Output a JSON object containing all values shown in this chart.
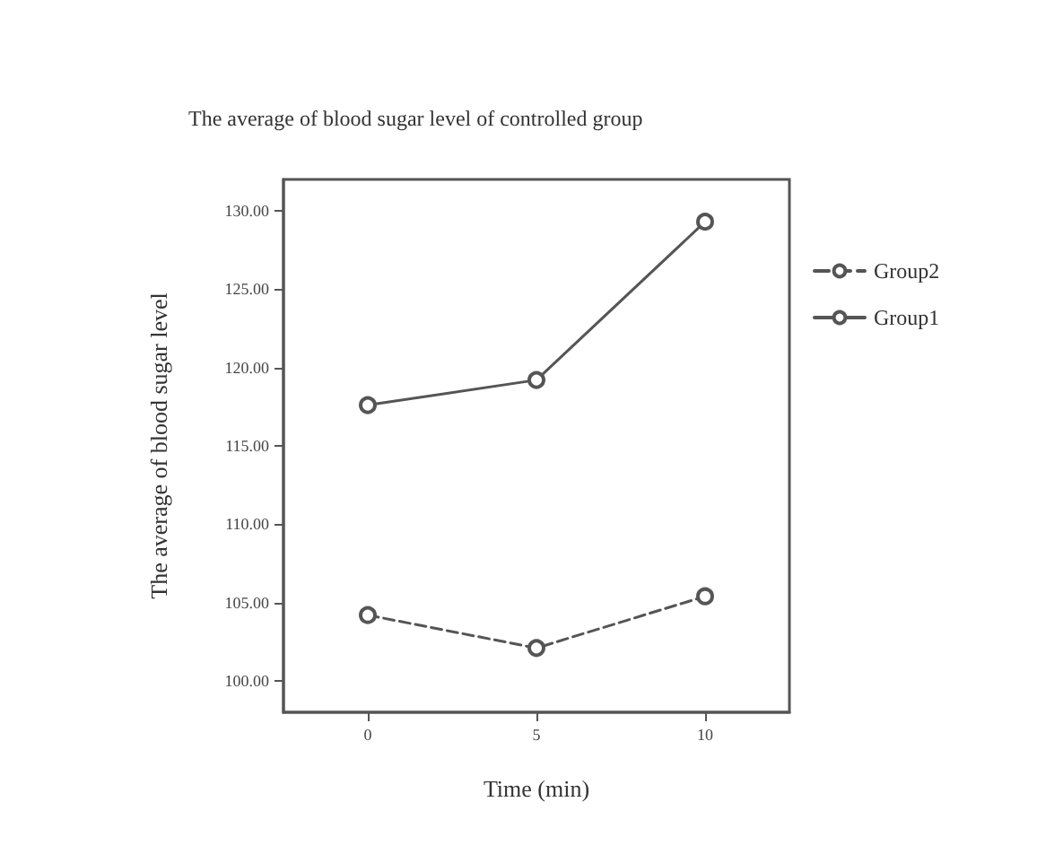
{
  "chart_data": {
    "type": "line",
    "title": "The average of blood sugar level of controlled group",
    "xlabel": "Time (min)",
    "ylabel": "The average of blood sugar level",
    "categories": [
      "0",
      "5",
      "10"
    ],
    "series": [
      {
        "name": "Group2",
        "color": "#555555",
        "values": [
          104.2,
          102.1,
          105.4
        ],
        "line_style": "dashed"
      },
      {
        "name": "Group1",
        "color": "#555555",
        "values": [
          117.6,
          119.2,
          129.3
        ],
        "line_style": "solid"
      }
    ],
    "ylim": [
      98,
      132
    ],
    "yticks": [
      {
        "value": 100,
        "label": "100.00"
      },
      {
        "value": 105,
        "label": "105.00"
      },
      {
        "value": 110,
        "label": "110.00"
      },
      {
        "value": 115,
        "label": "115.00"
      },
      {
        "value": 120,
        "label": "120.00"
      },
      {
        "value": 125,
        "label": "125.00"
      },
      {
        "value": 130,
        "label": "130.00"
      }
    ],
    "grid": false,
    "legend": "right",
    "marker": "circle"
  }
}
